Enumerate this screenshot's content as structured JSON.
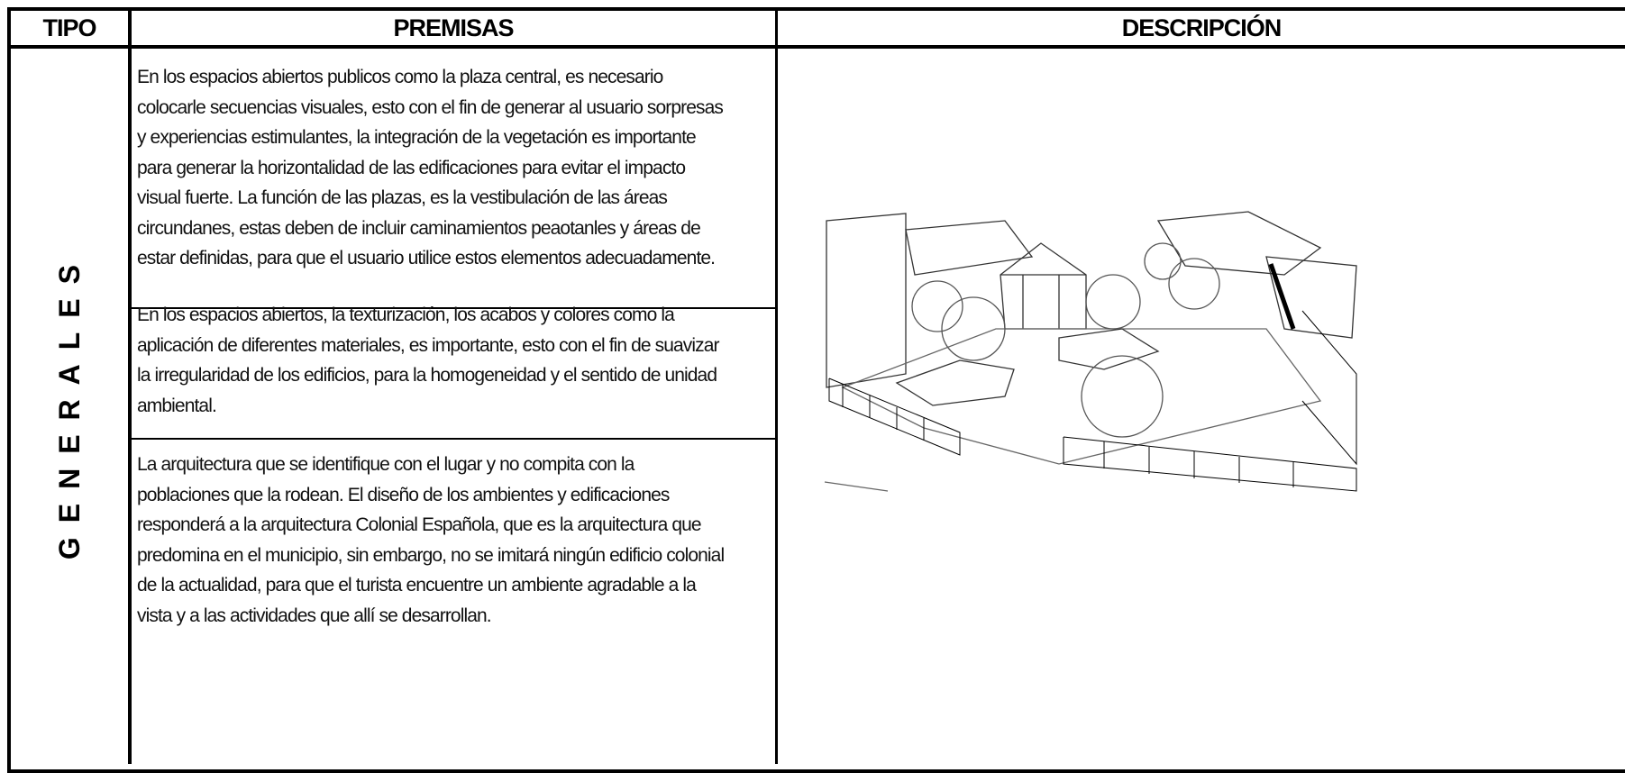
{
  "header": {
    "tipo": "TIPO",
    "premisas": "PREMISAS",
    "descripcion": "DESCRIPCIÓN"
  },
  "rows": [
    {
      "tipo": "GENERALES",
      "premisas": [
        [
          "En los espacios abiertos publicos como la plaza central, es necesario",
          "colocarle secuencias visuales, esto con el fin de generar al usuario sorpresas",
          "y experiencias estimulantes, la integración de la vegetación es importante",
          "para generar la horizontalidad de las edificaciones para evitar el impacto",
          "visual fuerte.  La función de las plazas, es la vestibulación de las áreas",
          "circundanes, estas deben de incluir caminamientos peaotanles y áreas de",
          "estar definidas, para que el usuario utilice estos elementos adecuadamente."
        ],
        [
          "En los espacios abiertos, la texturización, los acabos y colores como la",
          "aplicación de diferentes materiales, es importante, esto con el fin de suavizar",
          "la irregularidad de los edificios, para la homogeneidad y el sentido de unidad",
          "ambiental."
        ],
        [
          "La arquitectura que se identifique con el lugar y no compita con la",
          "poblaciones que la rodean.  El diseño de los ambientes y edificaciones",
          "responderá a la arquitectura Colonial Española, que es la arquitectura que",
          "predomina en el municipio, sin embargo, no se imitará ningún edificio colonial",
          "de la actualidad, para que el turista encuentre un ambiente agradable a la",
          "vista y a las actividades que allí se desarrollan."
        ]
      ]
    }
  ]
}
